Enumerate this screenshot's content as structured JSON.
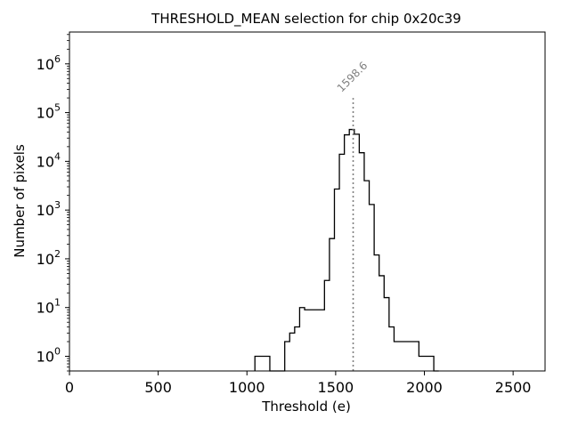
{
  "chart_data": {
    "type": "histogram",
    "title": "THRESHOLD_MEAN selection for chip 0x20c39",
    "xlabel": "Threshold (e)",
    "ylabel": "Number of pixels",
    "xlim": [
      0,
      2680
    ],
    "ylim": [
      0.5,
      4500000
    ],
    "yscale": "log",
    "x_ticks": [
      0,
      500,
      1000,
      1500,
      2000,
      2500
    ],
    "y_ticks": [
      {
        "value": 1,
        "base": "10",
        "exp": "0"
      },
      {
        "value": 10,
        "base": "10",
        "exp": "1"
      },
      {
        "value": 100,
        "base": "10",
        "exp": "2"
      },
      {
        "value": 1000,
        "base": "10",
        "exp": "3"
      },
      {
        "value": 10000,
        "base": "10",
        "exp": "4"
      },
      {
        "value": 100000,
        "base": "10",
        "exp": "5"
      },
      {
        "value": 1000000,
        "base": "10",
        "exp": "6"
      }
    ],
    "bin_edges": [
      1045,
      1073,
      1101,
      1129,
      1157,
      1185,
      1213,
      1241,
      1269,
      1297,
      1325,
      1353,
      1381,
      1409,
      1437,
      1465,
      1493,
      1521,
      1549,
      1577,
      1605,
      1633,
      1661,
      1689,
      1717,
      1745,
      1773,
      1801,
      1829,
      1857,
      1885,
      1913,
      1941,
      1969,
      1997,
      2025,
      2053,
      2081
    ],
    "counts": [
      1,
      1,
      1,
      0,
      0,
      0,
      2,
      3,
      4,
      10,
      9,
      9,
      9,
      9,
      36,
      260,
      2700,
      14000,
      35000,
      45000,
      36000,
      15000,
      4000,
      1300,
      120,
      45,
      16,
      4,
      2,
      2,
      2,
      2,
      2,
      1,
      1,
      1,
      0
    ],
    "vline": {
      "x": 1598.6,
      "label": "1598.6",
      "top_value": 200000
    }
  }
}
